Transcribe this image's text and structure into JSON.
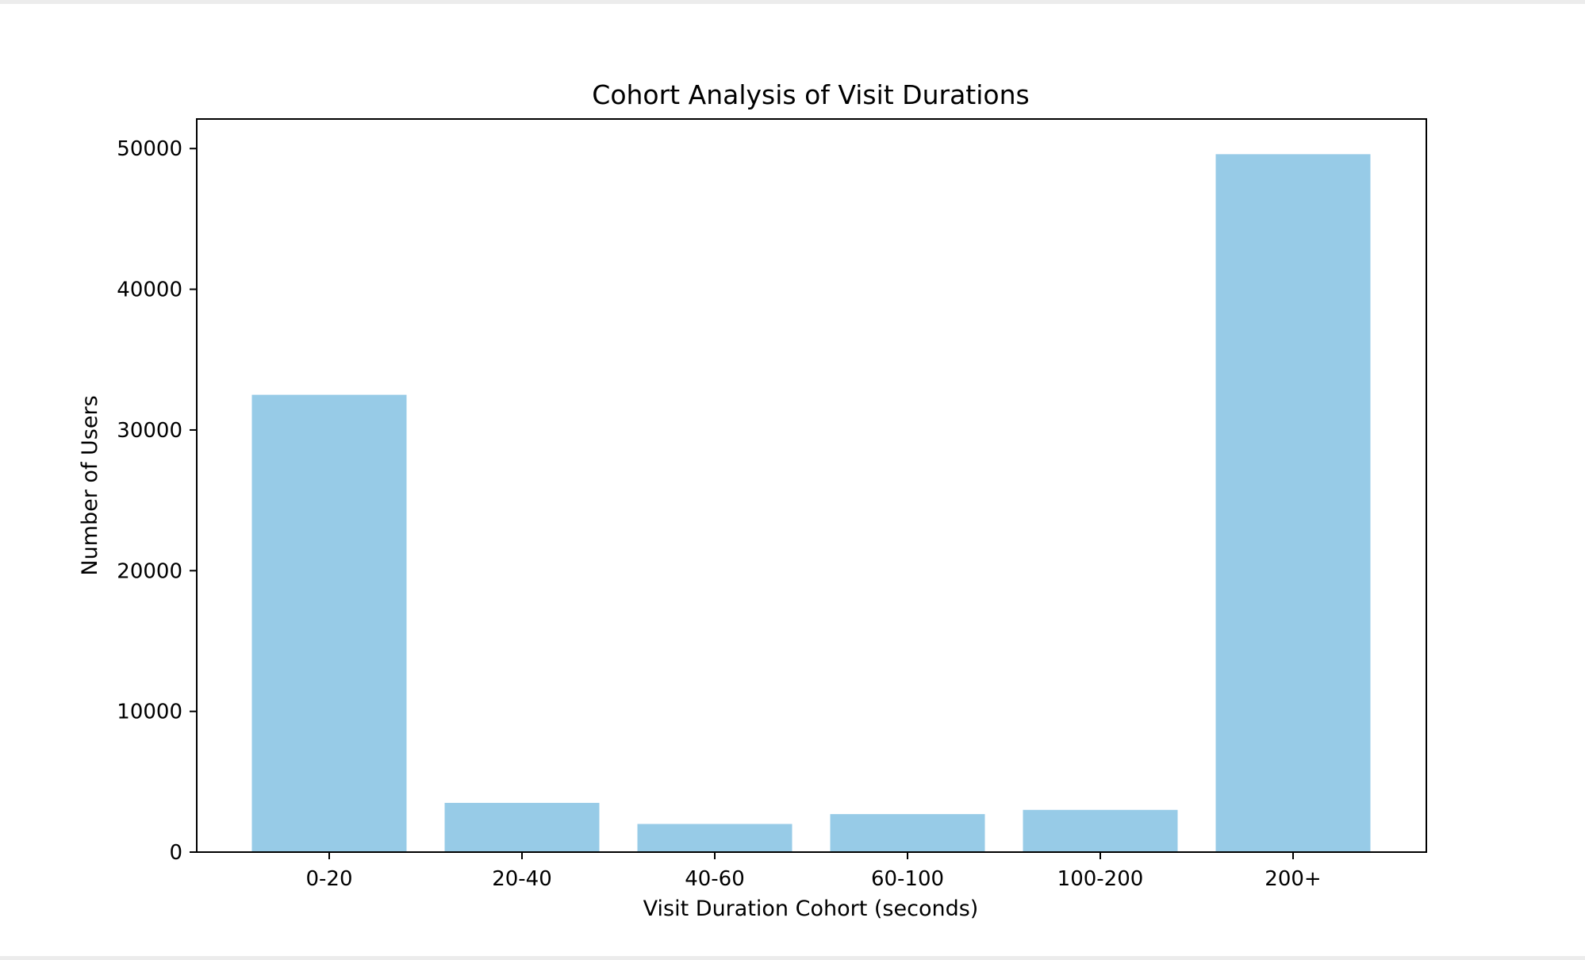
{
  "chart_data": {
    "type": "bar",
    "title": "Cohort Analysis of Visit Durations",
    "xlabel": "Visit Duration Cohort (seconds)",
    "ylabel": "Number of Users",
    "categories": [
      "0-20",
      "20-40",
      "40-60",
      "60-100",
      "100-200",
      "200+"
    ],
    "values": [
      32500,
      3500,
      2000,
      2700,
      3000,
      49600
    ],
    "ylim": [
      0,
      52100
    ],
    "yticks": [
      0,
      10000,
      20000,
      30000,
      40000,
      50000
    ],
    "ytick_labels": [
      "0",
      "10000",
      "20000",
      "30000",
      "40000",
      "50000"
    ],
    "bar_color": "#97cbe7",
    "grid": false,
    "legend": "none"
  }
}
